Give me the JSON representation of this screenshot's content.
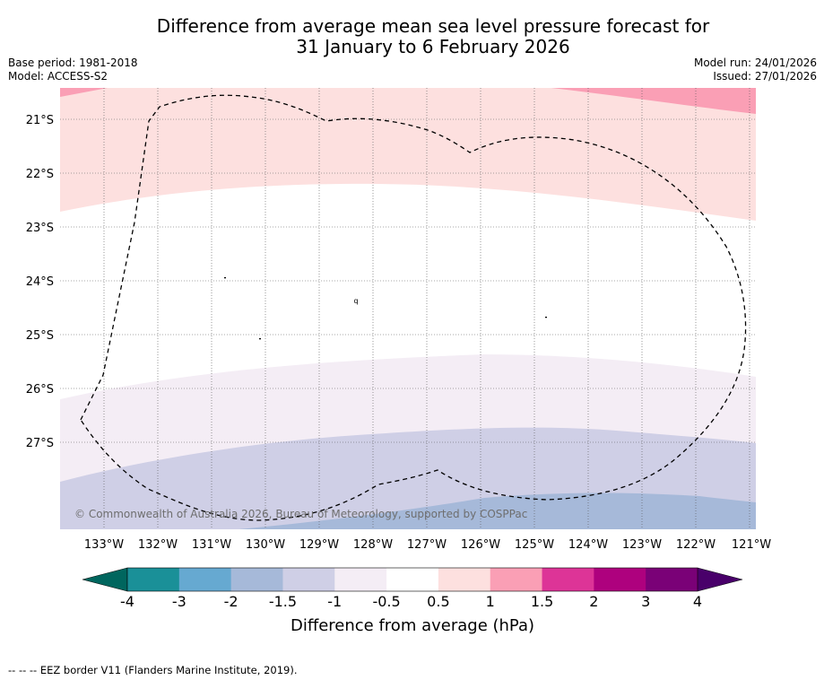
{
  "title": {
    "line1": "Difference from average mean sea level pressure forecast for",
    "line2": "31 January to 6 February 2026"
  },
  "meta": {
    "base_period": "Base period: 1981-2018",
    "model": "Model: ACCESS-S2",
    "model_run": "Model run: 24/01/2026",
    "issued": "Issued: 27/01/2026"
  },
  "map": {
    "lon_labels": [
      "133°W",
      "132°W",
      "131°W",
      "130°W",
      "129°W",
      "128°W",
      "127°W",
      "126°W",
      "125°W",
      "124°W",
      "123°W",
      "122°W",
      "121°W"
    ],
    "lat_labels": [
      "21°S",
      "22°S",
      "23°S",
      "24°S",
      "25°S",
      "26°S",
      "27°S"
    ],
    "copyright": "© Commonwealth of Australia 2026, Bureau of Meteorology, supported by COSPPac",
    "island_marker": "q"
  },
  "colorbar": {
    "ticks": [
      "-4",
      "-3",
      "-2",
      "-1.5",
      "-1",
      "-0.5",
      "0.5",
      "1",
      "1.5",
      "2",
      "3",
      "4"
    ],
    "colors": {
      "low_arrow": "#00665e",
      "bins": [
        "#1a9098",
        "#66a9d1",
        "#a6b9d9",
        "#cfcfe6",
        "#f4edf5",
        "#ffffff",
        "#fde0df",
        "#fa9fb5",
        "#dd3497",
        "#ae017e",
        "#7a0177"
      ],
      "high_arrow": "#49006a"
    },
    "label": "Difference from average (hPa)"
  },
  "footnote": "--  --  -- EEZ border V11 (Flanders Marine Institute, 2019)."
}
